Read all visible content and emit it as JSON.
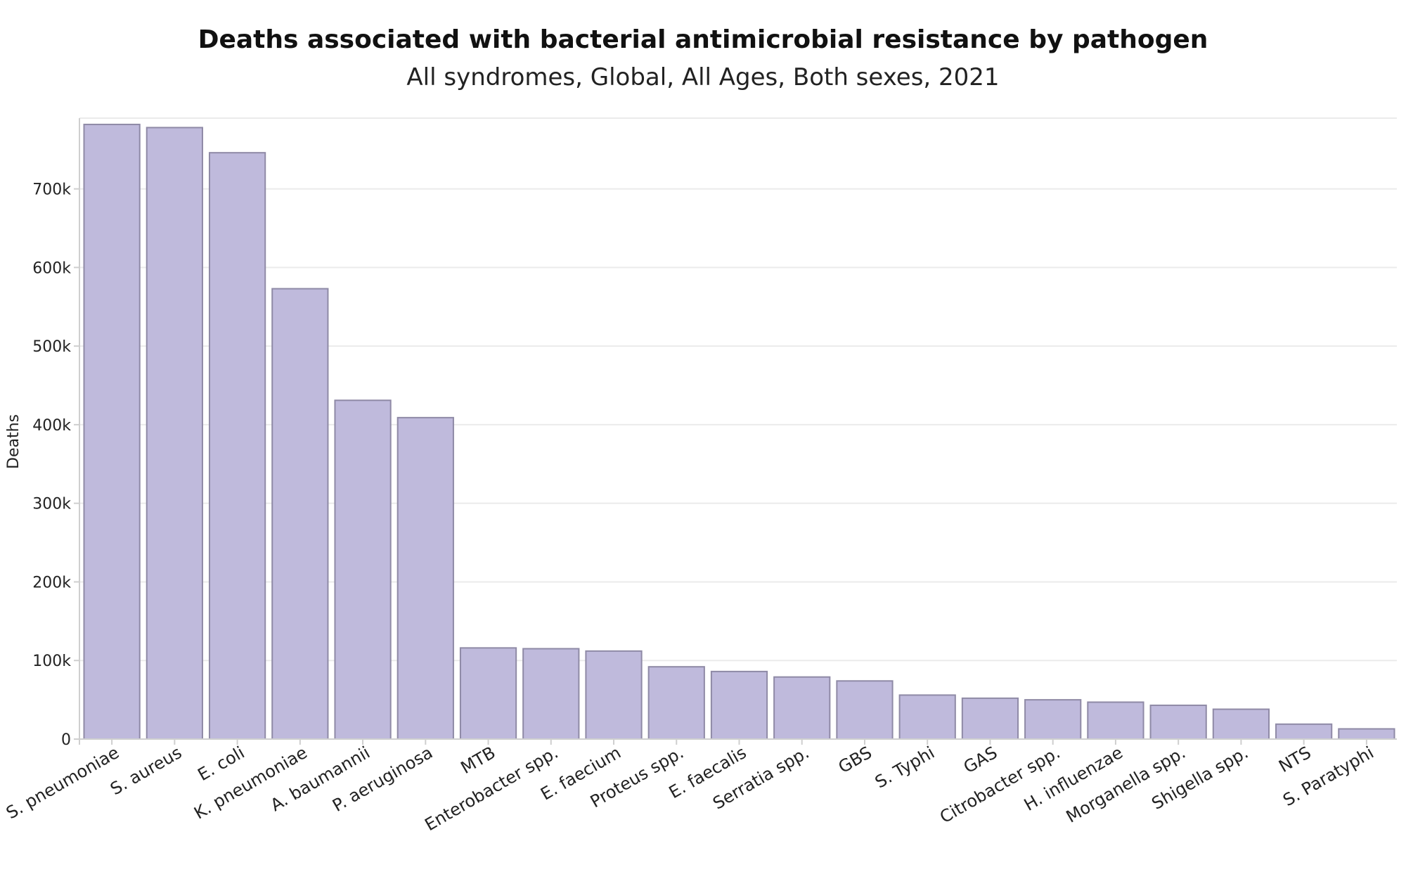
{
  "chart_data": {
    "type": "bar",
    "title": "Deaths associated with bacterial antimicrobial resistance by pathogen",
    "subtitle": "All syndromes, Global, All Ages, Both sexes, 2021",
    "xlabel": "",
    "ylabel": "Deaths",
    "ylim": [
      0,
      790000
    ],
    "yticks": [
      0,
      100000,
      200000,
      300000,
      400000,
      500000,
      600000,
      700000
    ],
    "ytick_labels": [
      "0",
      "100k",
      "200k",
      "300k",
      "400k",
      "500k",
      "600k",
      "700k"
    ],
    "grid": true,
    "legend": "none",
    "bar_color": "#bfbadc",
    "categories": [
      "S. pneumoniae",
      "S. aureus",
      "E. coli",
      "K. pneumoniae",
      "A. baumannii",
      "P. aeruginosa",
      "MTB",
      "Enterobacter spp.",
      "E. faecium",
      "Proteus spp.",
      "E. faecalis",
      "Serratia spp.",
      "GBS",
      "S. Typhi",
      "GAS",
      "Citrobacter spp.",
      "H. influenzae",
      "Morganella spp.",
      "Shigella spp.",
      "NTS",
      "S. Paratyphi"
    ],
    "values": [
      782000,
      778000,
      746000,
      573000,
      431000,
      409000,
      116000,
      115000,
      112000,
      92000,
      86000,
      79000,
      74000,
      56000,
      52000,
      50000,
      47000,
      43000,
      38000,
      19000,
      13000
    ]
  }
}
